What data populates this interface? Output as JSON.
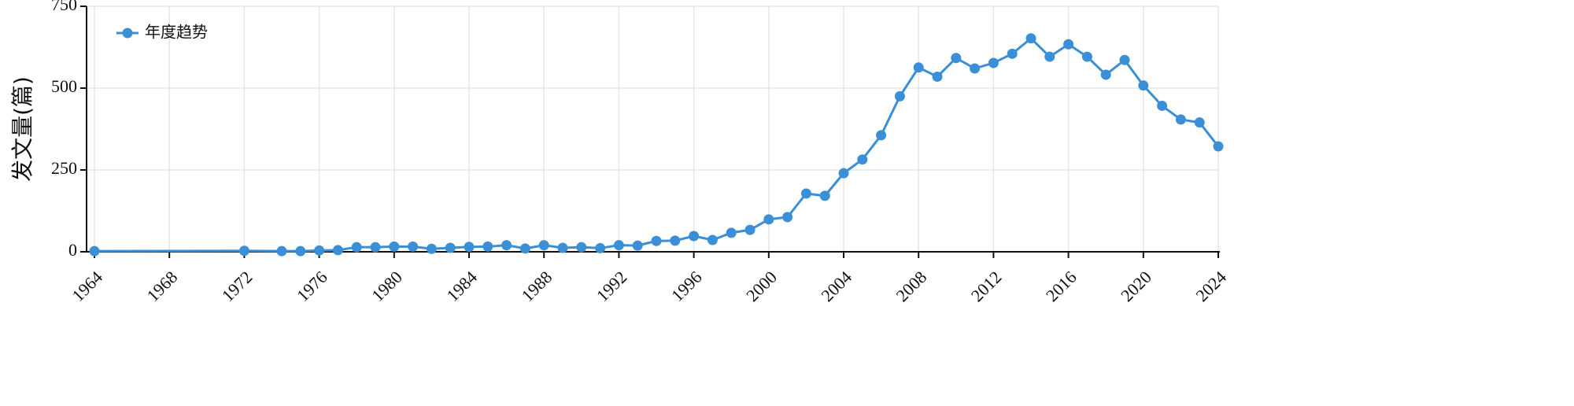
{
  "chart_data": {
    "type": "line",
    "ylabel": "发文量(篇)",
    "x": [
      1964,
      1972,
      1974,
      1975,
      1976,
      1977,
      1978,
      1979,
      1980,
      1981,
      1982,
      1983,
      1984,
      1985,
      1986,
      1987,
      1988,
      1989,
      1990,
      1991,
      1992,
      1993,
      1994,
      1995,
      1996,
      1997,
      1998,
      1999,
      2000,
      2001,
      2002,
      2003,
      2004,
      2005,
      2006,
      2007,
      2008,
      2009,
      2010,
      2011,
      2012,
      2013,
      2014,
      2015,
      2016,
      2017,
      2018,
      2019,
      2020,
      2021,
      2022,
      2023,
      2024
    ],
    "series": [
      {
        "name": "年度趋势",
        "color": "#3a8fd6",
        "values": [
          2,
          3,
          2,
          2,
          4,
          5,
          14,
          14,
          16,
          16,
          9,
          12,
          15,
          16,
          20,
          10,
          20,
          12,
          14,
          11,
          20,
          19,
          33,
          34,
          48,
          36,
          58,
          67,
          99,
          106,
          178,
          171,
          240,
          282,
          356,
          475,
          563,
          535,
          592,
          560,
          577,
          605,
          652,
          596,
          634,
          596,
          541,
          586,
          508,
          446,
          404,
          395,
          322
        ]
      }
    ],
    "xlim": [
      1964,
      2024
    ],
    "xticks": [
      1964,
      1968,
      1972,
      1976,
      1980,
      1984,
      1988,
      1992,
      1996,
      2000,
      2004,
      2008,
      2012,
      2016,
      2020,
      2024
    ],
    "ylim": [
      0,
      750
    ],
    "yticks": [
      0,
      250,
      500,
      750
    ],
    "grid": true,
    "legend": "upper left"
  }
}
